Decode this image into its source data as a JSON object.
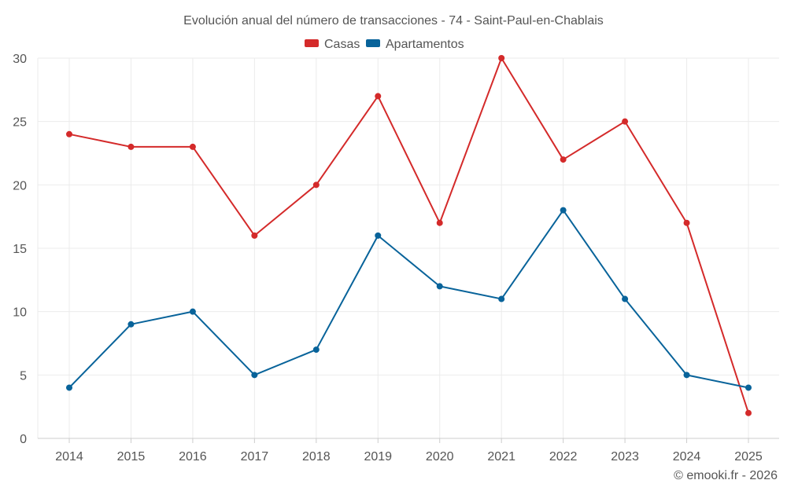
{
  "chart_data": {
    "type": "line",
    "title": "Evolución anual del número de transacciones - 74 - Saint-Paul-en-Chablais",
    "categories": [
      "2014",
      "2015",
      "2016",
      "2017",
      "2018",
      "2019",
      "2020",
      "2021",
      "2022",
      "2023",
      "2024",
      "2025"
    ],
    "series": [
      {
        "name": "Casas",
        "color": "#d42a2a",
        "values": [
          24,
          23,
          23,
          16,
          20,
          27,
          17,
          30,
          22,
          25,
          17,
          2
        ]
      },
      {
        "name": "Apartamentos",
        "color": "#08639a",
        "values": [
          4,
          9,
          10,
          5,
          7,
          16,
          12,
          11,
          18,
          11,
          5,
          4
        ]
      }
    ],
    "ylim": [
      0,
      30
    ],
    "yticks": [
      0,
      5,
      10,
      15,
      20,
      25,
      30
    ],
    "xlabel": "",
    "ylabel": "",
    "grid": true,
    "legend": "top-center"
  },
  "credit": "© emooki.fr - 2026"
}
